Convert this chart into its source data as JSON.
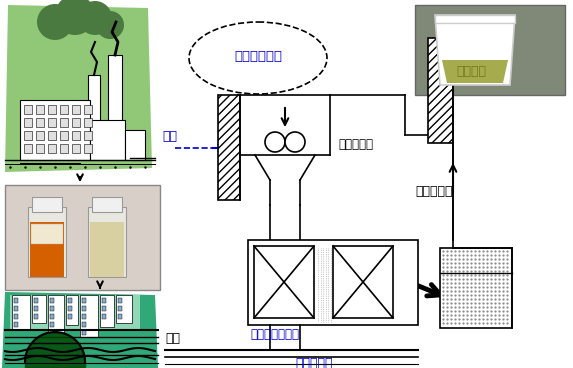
{
  "bg_color": "#ffffff",
  "text_blue": "#0000cc",
  "text_black": "#000000",
  "labels": {
    "ellipse": "製紙工場排水",
    "haisui_top": "排水",
    "haisui_bottom": "排水",
    "seed": "シード剤",
    "coagulant": "凝集混和剤",
    "recycle": "リサイクル",
    "magnet": "超伝導磁石装置",
    "clean_water": "分離浄化水"
  },
  "fig_width": 5.73,
  "fig_height": 3.68
}
